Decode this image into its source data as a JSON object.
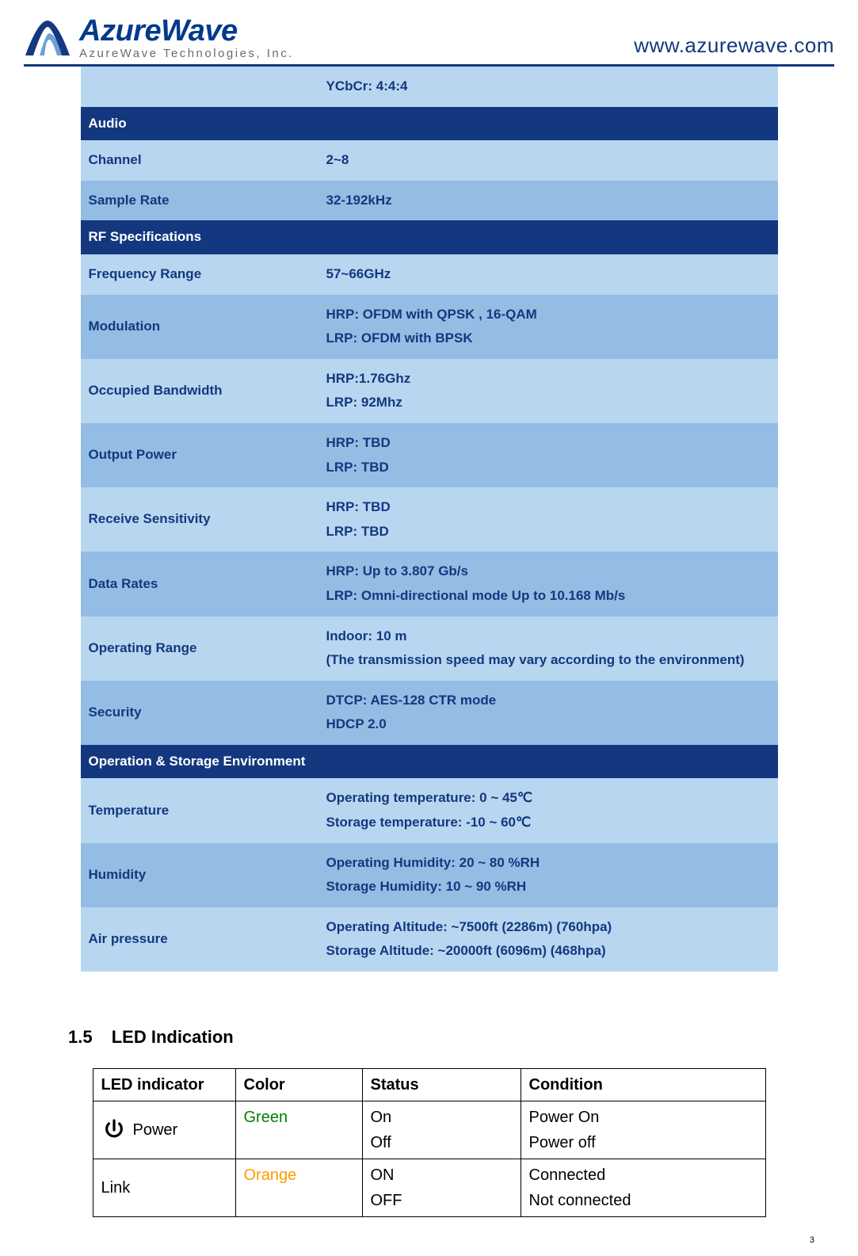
{
  "header": {
    "logo_main": "AzureWave",
    "logo_sub": "AzureWave  Technologies,  Inc.",
    "url": "www.azurewave.com"
  },
  "colors": {
    "brand_dark": "#14387f",
    "shade_light": "#b8d6f0",
    "shade_med": "#94bde4",
    "section_bg": "#14387f",
    "green": "#008000",
    "orange": "#ff9900",
    "rule": "#14387f"
  },
  "spec_table": {
    "top_value": "YCbCr: 4:4:4",
    "sections": [
      {
        "title": "Audio",
        "rows": [
          {
            "label": "Channel",
            "value": "2~8"
          },
          {
            "label": "Sample Rate",
            "value": "32-192kHz"
          }
        ]
      },
      {
        "title": "RF Specifications",
        "rows": [
          {
            "label": "Frequency Range",
            "value": "57~66GHz"
          },
          {
            "label": "Modulation",
            "value": "HRP: OFDM with QPSK , 16-QAM\nLRP: OFDM with BPSK"
          },
          {
            "label": "Occupied Bandwidth",
            "value": "HRP:1.76Ghz\nLRP: 92Mhz"
          },
          {
            "label": "Output Power",
            "value": "HRP: TBD\nLRP: TBD"
          },
          {
            "label": "Receive Sensitivity",
            "value": "HRP: TBD\nLRP: TBD"
          },
          {
            "label": "Data Rates",
            "value": "HRP: Up to 3.807 Gb/s\nLRP: Omni-directional mode Up to 10.168 Mb/s"
          },
          {
            "label": "Operating Range",
            "value": "Indoor: 10 m\n(The transmission speed may vary according to the environment)"
          },
          {
            "label": "Security",
            "value": "DTCP: AES-128 CTR mode\nHDCP 2.0"
          }
        ]
      },
      {
        "title": "Operation & Storage Environment",
        "rows": [
          {
            "label": "Temperature",
            "value": "Operating temperature: 0 ~ 45℃\nStorage temperature: -10 ~ 60℃"
          },
          {
            "label": "Humidity",
            "value": "Operating Humidity: 20 ~ 80 %RH\nStorage Humidity: 10 ~ 90 %RH"
          },
          {
            "label": "Air pressure",
            "value": "Operating Altitude: ~7500ft (2286m) (760hpa)\nStorage Altitude: ~20000ft (6096m) (468hpa)"
          }
        ]
      }
    ]
  },
  "led_section": {
    "number": "1.5",
    "title": "LED Indication",
    "columns": [
      "LED indicator",
      "Color",
      "Status",
      "Condition"
    ],
    "rows": [
      {
        "indicator": "Power",
        "has_icon": true,
        "color": "Green",
        "color_class": "green-text",
        "status": "On\nOff",
        "condition": "Power On\nPower off"
      },
      {
        "indicator": "Link",
        "has_icon": false,
        "color": "Orange",
        "color_class": "orange-text",
        "status": "ON\nOFF",
        "condition": "Connected\nNot connected"
      }
    ]
  },
  "page_number": "3"
}
